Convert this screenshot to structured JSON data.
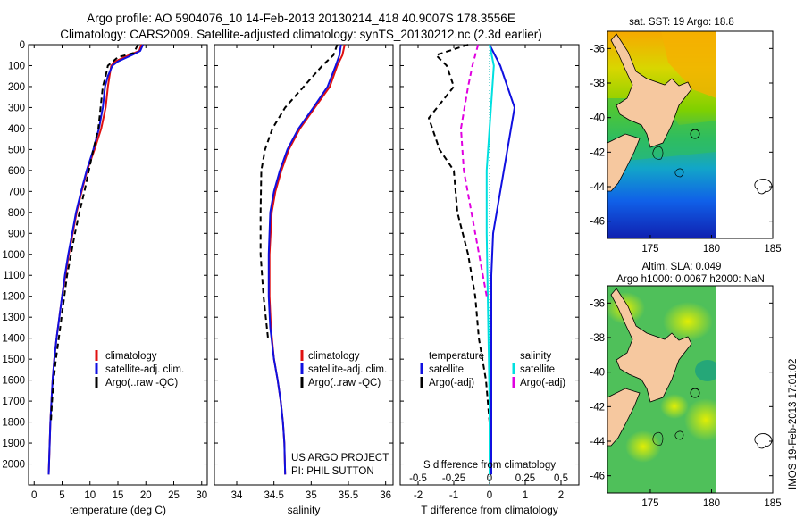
{
  "title": {
    "line1": "Argo profile: AO 5904076_10 14-Feb-2013 20130214_418 40.9007S 178.3556E",
    "line2": "Climatology: CARS2009. Satellite-adjusted climatology: synTS_20130212.nc (2.3d earlier)"
  },
  "colors": {
    "climatology": "#e01010",
    "satellite": "#1010e0",
    "argo": "#000000",
    "satellite_s": "#00e0e0",
    "argo_s": "#e000e0",
    "land": "#f6c89f"
  },
  "chart_data": [
    {
      "type": "line",
      "name": "temperature",
      "xlabel": "temperature (deg C)",
      "ylabel": "",
      "xlim": [
        -1,
        31
      ],
      "ylim": [
        0,
        2100
      ],
      "xticks": [
        "0",
        "5",
        "10",
        "15",
        "20",
        "25",
        "30"
      ],
      "yticks": [
        "0",
        "100",
        "200",
        "300",
        "400",
        "500",
        "600",
        "700",
        "800",
        "900",
        "1000",
        "1100",
        "1200",
        "1300",
        "1400",
        "1500",
        "1600",
        "1700",
        "1800",
        "1900",
        "2000"
      ],
      "series": [
        {
          "name": "climatology",
          "x": [
            19.2,
            18.8,
            17.0,
            14.5,
            13.8,
            13.5,
            13.2,
            12.8,
            12.0,
            10.8,
            9.5,
            8.5,
            7.6,
            6.9,
            6.2,
            5.6,
            5.0,
            4.5,
            4.0,
            3.6,
            3.3,
            3.1,
            2.9,
            2.6
          ],
          "y": [
            0,
            30,
            50,
            80,
            100,
            150,
            200,
            300,
            400,
            500,
            600,
            700,
            800,
            900,
            1000,
            1100,
            1200,
            1300,
            1400,
            1500,
            1600,
            1700,
            1800,
            2050
          ]
        },
        {
          "name": "satellite-adj. clim.",
          "x": [
            19.5,
            19.0,
            17.5,
            15.0,
            14.0,
            13.2,
            12.7,
            12.3,
            11.6,
            10.6,
            9.4,
            8.4,
            7.5,
            6.8,
            6.1,
            5.5,
            5.0,
            4.5,
            4.0,
            3.6,
            3.3,
            3.1,
            2.9,
            2.6
          ],
          "y": [
            0,
            30,
            50,
            80,
            100,
            150,
            200,
            300,
            400,
            500,
            600,
            700,
            800,
            900,
            1000,
            1100,
            1200,
            1300,
            1400,
            1500,
            1600,
            1700,
            1800,
            2050
          ]
        },
        {
          "name": "Argo(..raw -QC)",
          "x": [
            18.6,
            17.8,
            15.0,
            13.2,
            12.8,
            12.3,
            11.9,
            11.5,
            10.6,
            9.8,
            9.0,
            8.1,
            7.3,
            6.6,
            5.9,
            5.4,
            4.9,
            4.4,
            3.9,
            3.5,
            3.2,
            3.0
          ],
          "y": [
            0,
            40,
            60,
            100,
            150,
            200,
            300,
            400,
            500,
            600,
            700,
            800,
            900,
            1000,
            1100,
            1200,
            1300,
            1400,
            1500,
            1600,
            1700,
            1800
          ]
        }
      ],
      "legend": [
        "climatology",
        "satellite-adj. clim.",
        "Argo(..raw -QC)"
      ],
      "legend_position": "bottom-right"
    },
    {
      "type": "line",
      "name": "salinity",
      "xlabel": "salinity",
      "xlim": [
        33.7,
        36.1
      ],
      "ylim": [
        0,
        2100
      ],
      "xticks": [
        "34",
        "34.5",
        "35",
        "35.5",
        "36"
      ],
      "series": [
        {
          "name": "climatology",
          "x": [
            35.45,
            35.42,
            35.35,
            35.25,
            35.05,
            34.85,
            34.7,
            34.6,
            34.52,
            34.47,
            34.44,
            34.44,
            34.46,
            34.5,
            34.55,
            34.59,
            34.62,
            34.64,
            34.65
          ],
          "y": [
            0,
            50,
            100,
            200,
            300,
            400,
            500,
            600,
            700,
            800,
            1000,
            1200,
            1350,
            1500,
            1600,
            1700,
            1800,
            1900,
            2050
          ]
        },
        {
          "name": "satellite-adj. clim.",
          "x": [
            35.4,
            35.38,
            35.33,
            35.22,
            35.03,
            34.83,
            34.68,
            34.58,
            34.5,
            34.45,
            34.43,
            34.43,
            34.45,
            34.5,
            34.55,
            34.59,
            34.62,
            34.64,
            34.65
          ],
          "y": [
            0,
            50,
            100,
            200,
            300,
            400,
            500,
            600,
            700,
            800,
            1000,
            1200,
            1350,
            1500,
            1600,
            1700,
            1800,
            1900,
            2050
          ]
        },
        {
          "name": "Argo(..raw -QC)",
          "x": [
            35.35,
            35.3,
            35.15,
            34.9,
            34.65,
            34.48,
            34.38,
            34.33,
            34.32,
            34.32,
            34.36,
            34.42
          ],
          "y": [
            0,
            50,
            100,
            200,
            300,
            400,
            500,
            600,
            800,
            1000,
            1200,
            1400
          ]
        }
      ],
      "legend": [
        "climatology",
        "satellite-adj. clim.",
        "Argo(..raw -QC)"
      ],
      "legend_position": "bottom-right",
      "annotation": [
        "US ARGO PROJECT",
        "PI: PHIL SUTTON"
      ]
    },
    {
      "type": "line",
      "name": "difference from climatology",
      "xlabel_bottom": "T difference from climatology",
      "xlabel_top": "S difference from climatology",
      "xlim": [
        -2.5,
        2.5
      ],
      "ylim": [
        0,
        2100
      ],
      "xticks_bottom": [
        "-2",
        "-1",
        "0",
        "1",
        "2"
      ],
      "xticks_top": [
        "-0.5",
        "-0.25",
        "0",
        "0.25",
        "0.5"
      ],
      "legend_temperature_title": "temperature",
      "legend_salinity_title": "salinity",
      "legend_temperature": [
        "satellite",
        "Argo(-adj)"
      ],
      "legend_salinity": [
        "satellite",
        "Argo(-adj)"
      ],
      "series": [
        {
          "name": "temperature satellite",
          "x": [
            0.0,
            0.3,
            0.5,
            0.7,
            0.6,
            0.5,
            0.3,
            0.1,
            0.05,
            0.05,
            0.05,
            0.05,
            0.05
          ],
          "y": [
            0,
            100,
            200,
            300,
            400,
            500,
            700,
            900,
            1100,
            1300,
            1500,
            1800,
            2050
          ]
        },
        {
          "name": "temperature Argo(-adj)",
          "x": [
            -0.6,
            -1.5,
            -1.2,
            -1.0,
            -1.7,
            -1.4,
            -1.0,
            -0.9,
            -0.6,
            -0.4,
            -0.3,
            -0.1,
            0.0
          ],
          "y": [
            0,
            50,
            100,
            200,
            350,
            500,
            600,
            800,
            1000,
            1200,
            1400,
            1600,
            1800
          ]
        },
        {
          "name": "salinity satellite",
          "x": [
            0.0,
            0.03,
            0.02,
            0.0,
            -0.02,
            -0.02,
            -0.01,
            0.0,
            0.0
          ],
          "y": [
            0,
            100,
            200,
            400,
            600,
            900,
            1300,
            1700,
            2050
          ]
        },
        {
          "name": "salinity Argo(-adj)",
          "x": [
            -0.08,
            -0.12,
            -0.15,
            -0.2,
            -0.18,
            -0.1,
            -0.02
          ],
          "y": [
            0,
            100,
            200,
            400,
            600,
            900,
            1200
          ]
        }
      ]
    }
  ],
  "maps": {
    "sst": {
      "title": "sat. SST: 19 Argo: 18.8",
      "xticks": [
        "175",
        "180",
        "185"
      ],
      "yticks": [
        "-36",
        "-38",
        "-40",
        "-42",
        "-44",
        "-46"
      ]
    },
    "sla": {
      "title_line1": "Altim. SLA: 0.049",
      "title_line2": "Argo h1000: 0.0067 h2000: NaN",
      "xticks": [
        "175",
        "180",
        "185"
      ],
      "yticks": [
        "-36",
        "-38",
        "-40",
        "-42",
        "-44",
        "-46"
      ]
    }
  },
  "watermark": "IMOS 19-Feb-2013 17:01:02"
}
